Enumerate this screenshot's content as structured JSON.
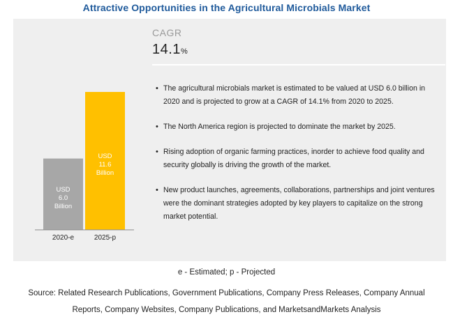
{
  "title": "Attractive Opportunities in the Agricultural Microbials Market",
  "cagr": {
    "label": "CAGR",
    "value": "14.1",
    "unit": "%"
  },
  "bullets": [
    "The agricultural microbials  market is estimated to be valued at USD 6.0 billion in 2020 and is projected to grow at a CAGR of 14.1% from 2020 to 2025.",
    "The North America region is projected  to dominate the market by 2025.",
    "Rising adoption of organic farming practices, inorder to achieve food quality and security globally is driving the growth of the market.",
    "New product launches, agreements, collaborations, partnerships and joint ventures  were the dominant strategies adopted by key players to capitalize on the strong market potential."
  ],
  "footer": {
    "legend_note": "e - Estimated;  p - Projected",
    "source": "Source: Related Research Publications, Government Publications, Company Press Releases, Company Annual Reports, Company Websites, Company Publications, and MarketsandMarkets Analysis"
  },
  "colors": {
    "bar_2020": "#a7a7a7",
    "bar_2025": "#ffc000",
    "title": "#1f5a9b",
    "panel": "#efefef"
  },
  "chart_data": {
    "type": "bar",
    "categories": [
      "2020-e",
      "2025-p"
    ],
    "values": [
      6.0,
      11.6
    ],
    "bar_labels": [
      [
        "USD",
        "6.0",
        "Billion"
      ],
      [
        "USD",
        "11.6",
        "Billion"
      ]
    ],
    "ylim": [
      0,
      11.6
    ],
    "grid": false,
    "legend": "none"
  }
}
